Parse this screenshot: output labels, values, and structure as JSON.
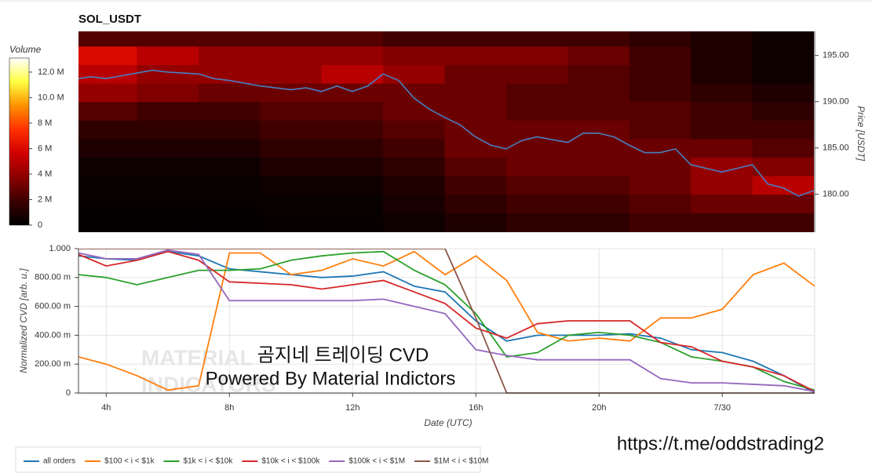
{
  "chart_data": [
    {
      "type": "heatmap",
      "title": "SOL_USDT",
      "xlim": [
        3.1,
        27
      ],
      "ylim": [
        175.9,
        197.6
      ],
      "ylabel": "Price [USDT]",
      "yticks": [
        {
          "value": 180,
          "label": "180.00"
        },
        {
          "value": 185,
          "label": "185.00"
        },
        {
          "value": 190,
          "label": "190.00"
        },
        {
          "value": 195,
          "label": "195.00"
        }
      ],
      "x_bins": [
        3.1,
        5,
        7,
        9,
        11,
        13,
        15,
        17,
        19,
        21,
        23,
        25,
        27
      ],
      "y_bins": [
        175.9,
        178,
        180,
        182,
        184,
        186,
        188,
        190,
        192,
        194,
        196,
        197.6
      ],
      "z": [
        [
          0.1,
          0.1,
          0.1,
          0.2,
          0.2,
          0.5,
          1,
          1.5,
          1.5,
          2,
          2,
          2
        ],
        [
          0.2,
          0.2,
          0.2,
          0.3,
          0.3,
          0.8,
          1.5,
          2,
          2,
          2.5,
          3,
          3
        ],
        [
          0.3,
          0.3,
          0.3,
          0.5,
          0.5,
          1,
          2,
          2.5,
          2.5,
          3,
          4,
          5
        ],
        [
          0.5,
          0.5,
          0.5,
          1,
          1,
          1.5,
          2.5,
          3,
          3,
          3,
          4,
          3.5
        ],
        [
          1,
          1,
          1,
          1.5,
          1.5,
          2,
          3,
          3,
          3,
          3,
          3,
          2.5
        ],
        [
          1.5,
          1.5,
          1.5,
          2,
          2,
          2.5,
          3,
          3,
          3,
          2.5,
          2,
          2
        ],
        [
          2.5,
          2,
          2,
          2.5,
          2.5,
          3,
          3,
          2.5,
          2.5,
          2.5,
          2,
          1.5
        ],
        [
          4,
          3.5,
          3,
          3,
          3,
          3,
          3,
          2.5,
          2.5,
          2,
          1.5,
          1
        ],
        [
          5,
          4,
          4,
          4,
          5,
          4,
          3,
          3,
          2.5,
          2,
          1,
          0.5
        ],
        [
          6,
          5,
          4,
          4,
          4,
          3.5,
          3.5,
          3.5,
          3,
          2,
          1,
          0.5
        ],
        [
          2.5,
          2.5,
          2.5,
          2.5,
          2.5,
          2,
          2,
          2,
          2,
          1.5,
          1,
          0.5
        ]
      ],
      "colorbar": {
        "label": "Volume",
        "lim": [
          0,
          13.1
        ],
        "ticks": [
          0,
          {
            "value": 2,
            "label": "2 M"
          },
          {
            "value": 4,
            "label": "4 M"
          },
          {
            "value": 6,
            "label": "6 M"
          },
          {
            "value": 8,
            "label": "8 M"
          },
          {
            "value": 10,
            "label": "10.0 M"
          },
          {
            "value": 12,
            "label": "12.0 M"
          }
        ],
        "colorscale": [
          "#000000",
          "#3a0000",
          "#8b0000",
          "#d00000",
          "#ff3000",
          "#ff9000",
          "#ffff40",
          "#ffffff"
        ]
      },
      "line": {
        "color": "#4a7fc1",
        "x": [
          3.1,
          3.5,
          4,
          4.5,
          5,
          5.5,
          6,
          6.5,
          7,
          7.5,
          8,
          8.5,
          9,
          9.5,
          10,
          10.5,
          11,
          11.5,
          12,
          12.5,
          13,
          13.5,
          14,
          14.5,
          15,
          15.5,
          16,
          16.5,
          17,
          17.5,
          18,
          18.5,
          19,
          19.5,
          20,
          20.5,
          21,
          21.5,
          22,
          22.5,
          23,
          23.5,
          24,
          24.5,
          25,
          25.5,
          26,
          26.5,
          27
        ],
        "values": [
          192.5,
          192.7,
          192.5,
          192.8,
          193.1,
          193.4,
          193.2,
          193.1,
          193.0,
          192.5,
          192.3,
          192.0,
          191.7,
          191.5,
          191.3,
          191.5,
          191.1,
          191.7,
          191.1,
          191.7,
          193.0,
          192.3,
          190.4,
          189.2,
          188.3,
          187.5,
          186.2,
          185.3,
          184.9,
          185.8,
          186.2,
          185.9,
          185.6,
          186.6,
          186.6,
          186.2,
          185.3,
          184.5,
          184.5,
          184.9,
          183.2,
          182.8,
          182.4,
          182.8,
          183.2,
          181.1,
          180.7,
          179.8,
          180.4
        ]
      }
    },
    {
      "type": "line",
      "xlabel": "Date (UTC)",
      "ylabel": "Normalized CVD [arb. u.]",
      "xlim": [
        3.1,
        27
      ],
      "ylim": [
        0,
        1
      ],
      "xticks": [
        {
          "value": 4,
          "label": "4h"
        },
        {
          "value": 8,
          "label": "8h"
        },
        {
          "value": 12,
          "label": "12h"
        },
        {
          "value": 16,
          "label": "16h"
        },
        {
          "value": 20,
          "label": "20h"
        },
        {
          "value": 24,
          "label": "7/30"
        }
      ],
      "yticks": [
        0,
        {
          "value": 0.2,
          "label": "200.00 m"
        },
        {
          "value": 0.4,
          "label": "400.00 m"
        },
        {
          "value": 0.6,
          "label": "600.00 m"
        },
        {
          "value": 0.8,
          "label": "800.00 m"
        },
        {
          "value": 1,
          "label": "1.000"
        }
      ],
      "grid": true,
      "legend": "bottom-left",
      "x": [
        3.1,
        4,
        5,
        6,
        7,
        8,
        9,
        10,
        11,
        12,
        13,
        14,
        15,
        16,
        17,
        18,
        19,
        20,
        21,
        22,
        23,
        24,
        25,
        26,
        27
      ],
      "series": [
        {
          "name": "all orders",
          "color": "#1f77b4",
          "values": [
            0.95,
            0.93,
            0.92,
            0.98,
            0.95,
            0.86,
            0.84,
            0.82,
            0.8,
            0.81,
            0.84,
            0.74,
            0.7,
            0.5,
            0.36,
            0.4,
            0.4,
            0.4,
            0.41,
            0.38,
            0.3,
            0.28,
            0.22,
            0.12,
            0.0
          ]
        },
        {
          "name": "$100 < i < $1k",
          "color": "#ff7f0e",
          "values": [
            0.25,
            0.2,
            0.12,
            0.02,
            0.05,
            0.97,
            0.97,
            0.82,
            0.85,
            0.93,
            0.88,
            0.98,
            0.82,
            0.95,
            0.78,
            0.42,
            0.36,
            0.38,
            0.36,
            0.52,
            0.52,
            0.58,
            0.82,
            0.9,
            0.74
          ]
        },
        {
          "name": "$1k < i < $10k",
          "color": "#2ca02c",
          "values": [
            0.82,
            0.8,
            0.75,
            0.8,
            0.85,
            0.85,
            0.86,
            0.92,
            0.95,
            0.97,
            0.98,
            0.85,
            0.75,
            0.55,
            0.25,
            0.28,
            0.4,
            0.42,
            0.4,
            0.35,
            0.25,
            0.22,
            0.18,
            0.08,
            0.02
          ]
        },
        {
          "name": "$10k < i < $100k",
          "color": "#d62728",
          "values": [
            0.96,
            0.88,
            0.92,
            0.98,
            0.92,
            0.77,
            0.76,
            0.75,
            0.72,
            0.75,
            0.78,
            0.7,
            0.62,
            0.45,
            0.38,
            0.48,
            0.5,
            0.5,
            0.5,
            0.35,
            0.32,
            0.22,
            0.18,
            0.12,
            0.01
          ]
        },
        {
          "name": "$100k < i < $1M",
          "color": "#9467bd",
          "values": [
            0.97,
            0.93,
            0.93,
            0.99,
            0.96,
            0.64,
            0.64,
            0.64,
            0.64,
            0.64,
            0.65,
            0.6,
            0.55,
            0.3,
            0.26,
            0.23,
            0.23,
            0.23,
            0.23,
            0.1,
            0.07,
            0.07,
            0.06,
            0.05,
            0.01
          ]
        },
        {
          "name": "$1M < i < $10M",
          "color": "#8c564b",
          "values": [
            1.0,
            1.0,
            1.0,
            1.0,
            1.0,
            1.0,
            1.0,
            1.0,
            1.0,
            1.0,
            1.0,
            1.0,
            1.0,
            0.52,
            0.0,
            0.0,
            0.0,
            0.0,
            0.0,
            0.0,
            0.0,
            0.0,
            0.0,
            0.0,
            0.0
          ]
        }
      ],
      "annotations": [
        "곰지네 트레이딩 CVD",
        "Powered By Material Indictors"
      ],
      "watermark": [
        "MATERIAL",
        "INDICATORS"
      ]
    }
  ],
  "link": "https://t.me/oddstrading2"
}
